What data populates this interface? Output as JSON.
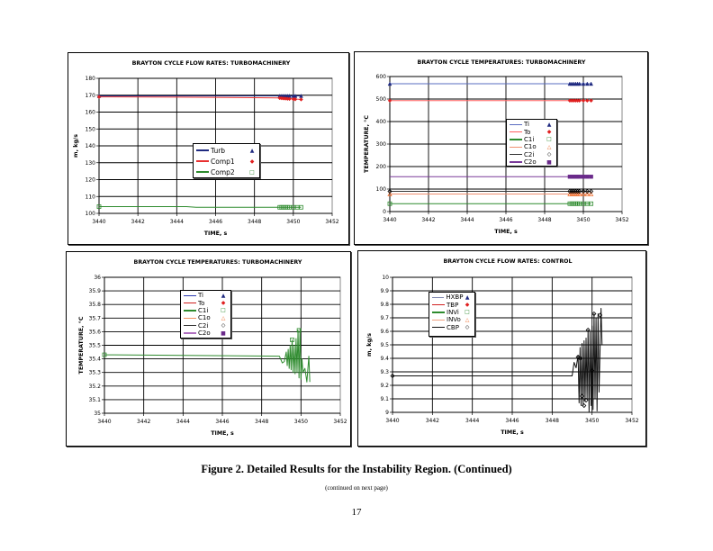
{
  "figure_caption": "Figure 2. Detailed Results for the Instability Region. (Continued)",
  "continued_note": "(continued on next page)",
  "page_number": "17",
  "chart_data": [
    {
      "type": "line",
      "title": "BRAYTON CYCLE FLOW RATES: TURBOMACHINERY",
      "xlabel": "TIME, s",
      "ylabel": "m, kg/s",
      "xlim": [
        3440,
        3452
      ],
      "ylim": [
        100,
        180
      ],
      "xticks": [
        3440,
        3442,
        3444,
        3446,
        3448,
        3450,
        3452
      ],
      "yticks": [
        100,
        110,
        120,
        130,
        140,
        150,
        160,
        170,
        180
      ],
      "grid": true,
      "legend_position": "center",
      "series": [
        {
          "name": "Turb",
          "color": "#1f2a80",
          "marker": "triangle",
          "marker_color": "#1f2a80",
          "points": [
            [
              3440,
              169.6
            ],
            [
              3449.3,
              169.6
            ],
            [
              3450.4,
              169.6
            ]
          ],
          "markers": [
            [
              3440,
              169.6
            ],
            [
              3449.3,
              169.6
            ],
            [
              3449.4,
              169.6
            ],
            [
              3449.5,
              169.6
            ],
            [
              3449.6,
              169.6
            ],
            [
              3449.7,
              169.6
            ],
            [
              3449.8,
              169.6
            ],
            [
              3450.0,
              169.6
            ],
            [
              3450.1,
              169.6
            ],
            [
              3450.4,
              169.6
            ]
          ]
        },
        {
          "name": "Comp1",
          "color": "#e83030",
          "marker": "diamond",
          "marker_color": "#e02020",
          "points": [
            [
              3440,
              169.0
            ],
            [
              3444,
              168.9
            ],
            [
              3449.3,
              168.4
            ],
            [
              3450.4,
              167.5
            ]
          ],
          "markers": [
            [
              3440,
              169.0
            ],
            [
              3449.3,
              168.3
            ],
            [
              3449.4,
              168.2
            ],
            [
              3449.5,
              168.1
            ],
            [
              3449.6,
              168.0
            ],
            [
              3449.7,
              167.9
            ],
            [
              3449.8,
              167.8
            ],
            [
              3450.0,
              167.7
            ],
            [
              3450.1,
              167.6
            ],
            [
              3450.4,
              167.5
            ]
          ]
        },
        {
          "name": "Comp2",
          "color": "#2e8b2e",
          "marker": "square-open",
          "marker_color": "#2e8b2e",
          "points": [
            [
              3440,
              104.0
            ],
            [
              3444.5,
              104.0
            ],
            [
              3445,
              103.6
            ],
            [
              3450.4,
              103.6
            ]
          ],
          "markers": [
            [
              3440,
              104.0
            ],
            [
              3449.3,
              103.6
            ],
            [
              3449.4,
              103.6
            ],
            [
              3449.5,
              103.6
            ],
            [
              3449.6,
              103.6
            ],
            [
              3449.7,
              103.6
            ],
            [
              3449.8,
              103.6
            ],
            [
              3450.0,
              103.6
            ],
            [
              3450.2,
              103.6
            ],
            [
              3450.4,
              103.6
            ]
          ]
        }
      ]
    },
    {
      "type": "line",
      "title": "BRAYTON CYCLE TEMPERATURES: TURBOMACHINERY",
      "xlabel": "TIME, s",
      "ylabel": "TEMPERATURE, °C",
      "xlim": [
        3440,
        3452
      ],
      "ylim": [
        0,
        600
      ],
      "xticks": [
        3440,
        3442,
        3444,
        3446,
        3448,
        3450,
        3452
      ],
      "yticks": [
        0,
        100,
        200,
        300,
        400,
        500,
        600
      ],
      "grid": true,
      "legend_position": "center-right",
      "series": [
        {
          "name": "Ti",
          "color": "#5a6cc0",
          "marker": "triangle",
          "marker_color": "#1f2a80",
          "points": [
            [
              3440,
              568
            ],
            [
              3450.4,
              568
            ]
          ],
          "markers": [
            [
              3440,
              568
            ],
            [
              3449.3,
              568
            ],
            [
              3449.4,
              568
            ],
            [
              3449.5,
              568
            ],
            [
              3449.6,
              568
            ],
            [
              3449.7,
              568
            ],
            [
              3449.8,
              568
            ],
            [
              3450.0,
              568
            ],
            [
              3450.2,
              568
            ],
            [
              3450.4,
              568
            ]
          ]
        },
        {
          "name": "To",
          "color": "#ff6060",
          "marker": "diamond",
          "marker_color": "#e02020",
          "points": [
            [
              3440,
              493
            ],
            [
              3450.4,
              493
            ]
          ],
          "markers": [
            [
              3440,
              493
            ],
            [
              3449.3,
              493
            ],
            [
              3449.4,
              493
            ],
            [
              3449.5,
              493
            ],
            [
              3449.6,
              493
            ],
            [
              3449.7,
              493
            ],
            [
              3449.8,
              493
            ],
            [
              3450.0,
              493
            ],
            [
              3450.2,
              493
            ],
            [
              3450.4,
              493
            ]
          ]
        },
        {
          "name": "C1i",
          "color": "#2e8b2e",
          "marker": "square-open",
          "marker_color": "#2e8b2e",
          "points": [
            [
              3440,
              35
            ],
            [
              3450.4,
              35
            ]
          ],
          "markers": [
            [
              3440,
              35
            ],
            [
              3449.3,
              35
            ],
            [
              3449.4,
              35
            ],
            [
              3449.5,
              35
            ],
            [
              3449.6,
              35
            ],
            [
              3449.7,
              35
            ],
            [
              3449.8,
              35
            ],
            [
              3450.0,
              35
            ],
            [
              3450.2,
              35
            ],
            [
              3450.4,
              35
            ]
          ]
        },
        {
          "name": "C1o",
          "color": "#f09070",
          "marker": "triangle-open",
          "marker_color": "#f07030",
          "points": [
            [
              3440,
              78
            ],
            [
              3450.4,
              78
            ]
          ],
          "markers": [
            [
              3440,
              78
            ],
            [
              3449.3,
              78
            ],
            [
              3449.4,
              78
            ],
            [
              3449.5,
              78
            ],
            [
              3449.6,
              78
            ],
            [
              3449.7,
              78
            ],
            [
              3449.8,
              78
            ],
            [
              3450.0,
              78
            ],
            [
              3450.2,
              78
            ],
            [
              3450.4,
              78
            ]
          ]
        },
        {
          "name": "C2i",
          "color": "#333333",
          "marker": "diamond-open",
          "marker_color": "#000000",
          "points": [
            [
              3440,
              90
            ],
            [
              3450.4,
              90
            ]
          ],
          "markers": [
            [
              3440,
              90
            ],
            [
              3449.3,
              90
            ],
            [
              3449.4,
              90
            ],
            [
              3449.5,
              90
            ],
            [
              3449.6,
              90
            ],
            [
              3449.7,
              90
            ],
            [
              3449.8,
              90
            ],
            [
              3450.0,
              90
            ],
            [
              3450.2,
              90
            ],
            [
              3450.4,
              90
            ]
          ]
        },
        {
          "name": "C2o",
          "color": "#7a3a9a",
          "marker": "square",
          "marker_color": "#6a2a8a",
          "points": [
            [
              3440,
              155
            ],
            [
              3450.4,
              155
            ]
          ],
          "markers": [
            [
              3449.3,
              155
            ],
            [
              3449.4,
              155
            ],
            [
              3449.5,
              155
            ],
            [
              3449.6,
              155
            ],
            [
              3449.7,
              155
            ],
            [
              3449.8,
              155
            ],
            [
              3450.0,
              155
            ],
            [
              3450.2,
              155
            ],
            [
              3450.4,
              155
            ]
          ]
        }
      ]
    },
    {
      "type": "line",
      "title": "BRAYTON CYCLE TEMPERATURES: TURBOMACHINERY",
      "xlabel": "TIME, s",
      "ylabel": "TEMPERATURE, °C",
      "xlim": [
        3440,
        3452
      ],
      "ylim": [
        35,
        36
      ],
      "xticks": [
        3440,
        3442,
        3444,
        3446,
        3448,
        3450,
        3452
      ],
      "yticks": [
        35,
        35.1,
        35.2,
        35.3,
        35.4,
        35.5,
        35.6,
        35.7,
        35.8,
        35.9,
        36
      ],
      "grid": true,
      "legend_position": "top-center",
      "series": [
        {
          "name": "Ti",
          "color": "#2a3ab0",
          "marker": "triangle",
          "marker_color": "#1f2a80",
          "points": [],
          "markers": []
        },
        {
          "name": "To",
          "color": "#d02020",
          "marker": "diamond",
          "marker_color": "#e02020",
          "points": [],
          "markers": []
        },
        {
          "name": "C1i",
          "color": "#2e8b2e",
          "marker": "square-open",
          "marker_color": "#2e8b2e",
          "points": [
            [
              3440,
              35.43
            ],
            [
              3448.9,
              35.42
            ],
            [
              3449.05,
              35.37
            ],
            [
              3449.15,
              35.38
            ],
            [
              3449.25,
              35.45
            ],
            [
              3449.3,
              35.35
            ],
            [
              3449.35,
              35.47
            ],
            [
              3449.4,
              35.33
            ],
            [
              3449.45,
              35.5
            ],
            [
              3449.5,
              35.32
            ],
            [
              3449.55,
              35.54
            ],
            [
              3449.6,
              35.3
            ],
            [
              3449.65,
              35.5
            ],
            [
              3449.7,
              35.29
            ],
            [
              3449.75,
              35.55
            ],
            [
              3449.8,
              35.3
            ],
            [
              3449.85,
              35.61
            ],
            [
              3449.9,
              35.26
            ],
            [
              3449.95,
              35.62
            ],
            [
              3450.0,
              35.25
            ],
            [
              3450.05,
              35.4
            ],
            [
              3450.1,
              35.3
            ],
            [
              3450.2,
              35.33
            ],
            [
              3450.3,
              35.23
            ],
            [
              3450.4,
              35.42
            ],
            [
              3450.45,
              35.23
            ]
          ],
          "markers": [
            [
              3440,
              35.43
            ],
            [
              3449.55,
              35.54
            ],
            [
              3449.9,
              35.61
            ]
          ]
        },
        {
          "name": "C1o",
          "color": "#f09060",
          "marker": "triangle-open",
          "marker_color": "#f07030",
          "points": [],
          "markers": []
        },
        {
          "name": "C2i",
          "color": "#333333",
          "marker": "diamond-open",
          "marker_color": "#000000",
          "points": [],
          "markers": []
        },
        {
          "name": "C2o",
          "color": "#b070c0",
          "marker": "square",
          "marker_color": "#6a2a8a",
          "points": [],
          "markers": []
        }
      ]
    },
    {
      "type": "line",
      "title": "BRAYTON CYCLE FLOW RATES: CONTROL",
      "xlabel": "TIME, s",
      "ylabel": "m, kg/s",
      "xlim": [
        3440,
        3452
      ],
      "ylim": [
        9,
        10
      ],
      "xticks": [
        3440,
        3442,
        3444,
        3446,
        3448,
        3450,
        3452
      ],
      "yticks": [
        9,
        9.1,
        9.2,
        9.3,
        9.4,
        9.5,
        9.6,
        9.7,
        9.8,
        9.9,
        10
      ],
      "grid": true,
      "legend_position": "top-left",
      "series": [
        {
          "name": "HXBP",
          "color": "#8088b0",
          "marker": "triangle",
          "marker_color": "#1f2a80",
          "points": [],
          "markers": []
        },
        {
          "name": "TBP",
          "color": "#d02020",
          "marker": "diamond",
          "marker_color": "#e02020",
          "points": [],
          "markers": []
        },
        {
          "name": "INVi",
          "color": "#2e8b2e",
          "marker": "square-open",
          "marker_color": "#2e8b2e",
          "points": [],
          "markers": []
        },
        {
          "name": "INVo",
          "color": "#f0a080",
          "marker": "triangle-open",
          "marker_color": "#f07030",
          "points": [],
          "markers": []
        },
        {
          "name": "CBP",
          "color": "#111111",
          "marker": "diamond-open",
          "marker_color": "#000000",
          "points": [
            [
              3440,
              9.27
            ],
            [
              3449.0,
              9.27
            ],
            [
              3449.1,
              9.37
            ],
            [
              3449.2,
              9.33
            ],
            [
              3449.3,
              9.42
            ],
            [
              3449.35,
              9.07
            ],
            [
              3449.4,
              9.48
            ],
            [
              3449.45,
              9.05
            ],
            [
              3449.5,
              9.51
            ],
            [
              3449.55,
              9.05
            ],
            [
              3449.6,
              9.53
            ],
            [
              3449.65,
              9.08
            ],
            [
              3449.7,
              9.55
            ],
            [
              3449.75,
              9.1
            ],
            [
              3449.8,
              9.61
            ],
            [
              3449.85,
              9.0
            ],
            [
              3449.9,
              9.6
            ],
            [
              3449.95,
              9.05
            ],
            [
              3450.0,
              9.64
            ],
            [
              3450.05,
              9.02
            ],
            [
              3450.1,
              9.73
            ],
            [
              3450.15,
              9.1
            ],
            [
              3450.2,
              9.7
            ],
            [
              3450.25,
              9.01
            ],
            [
              3450.3,
              9.73
            ],
            [
              3450.35,
              9.15
            ],
            [
              3450.45,
              9.77
            ],
            [
              3450.5,
              9.5
            ]
          ],
          "markers": [
            [
              3440,
              9.27
            ],
            [
              3449.3,
              9.41
            ],
            [
              3449.4,
              9.4
            ],
            [
              3449.5,
              9.12
            ],
            [
              3449.6,
              9.05
            ],
            [
              3449.7,
              9.09
            ],
            [
              3449.8,
              9.61
            ],
            [
              3450.0,
              9.31
            ],
            [
              3450.1,
              9.73
            ],
            [
              3450.4,
              9.72
            ]
          ]
        }
      ]
    }
  ]
}
